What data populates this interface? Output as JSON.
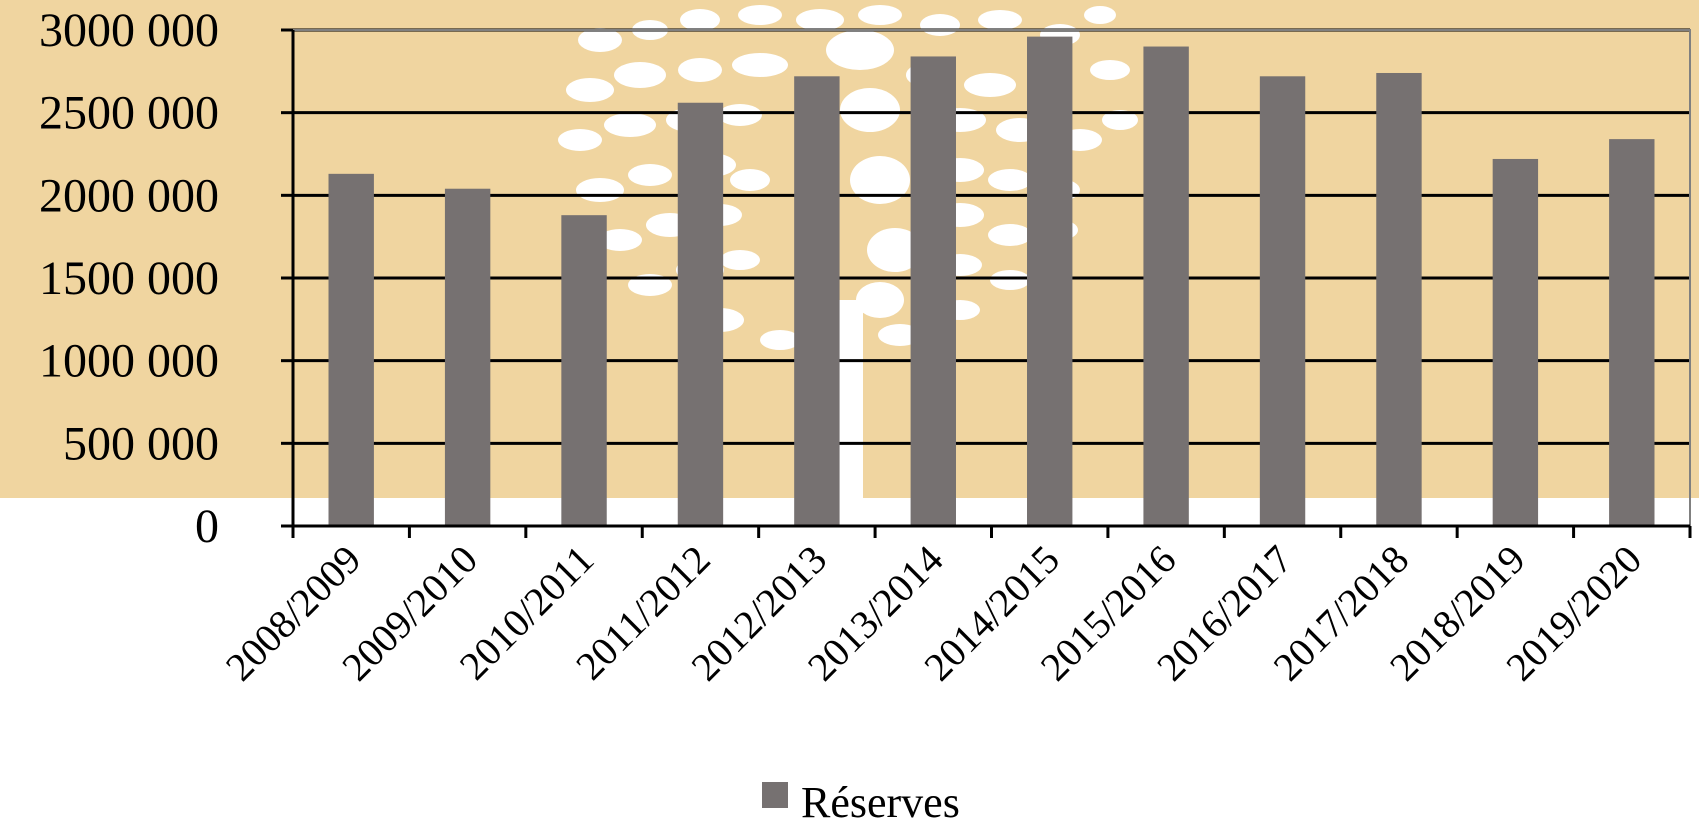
{
  "chart_data": {
    "type": "bar",
    "categories": [
      "2008/2009",
      "2009/2010",
      "2010/2011",
      "2011/2012",
      "2012/2013",
      "2013/2014",
      "2014/2015",
      "2015/2016",
      "2016/2017",
      "2017/2018",
      "2018/2019",
      "2019/2020"
    ],
    "series": [
      {
        "name": "Réserves",
        "values": [
          2130000,
          2040000,
          1880000,
          2560000,
          2720000,
          2840000,
          2960000,
          2900000,
          2720000,
          2740000,
          2220000,
          2340000
        ]
      }
    ],
    "yticks": [
      "0",
      "500 000",
      "1000 000",
      "1500 000",
      "2000 000",
      "2500 000",
      "3000 000"
    ],
    "ylim": [
      0,
      3000000
    ],
    "grid": true,
    "legend_position": "bottom-center",
    "colors": {
      "bar": "#767171",
      "background": "#f0d5a0",
      "illustration": "#ffffff",
      "gridline": "#000000"
    },
    "background_illustration": "tree-of-animal-silhouettes"
  }
}
